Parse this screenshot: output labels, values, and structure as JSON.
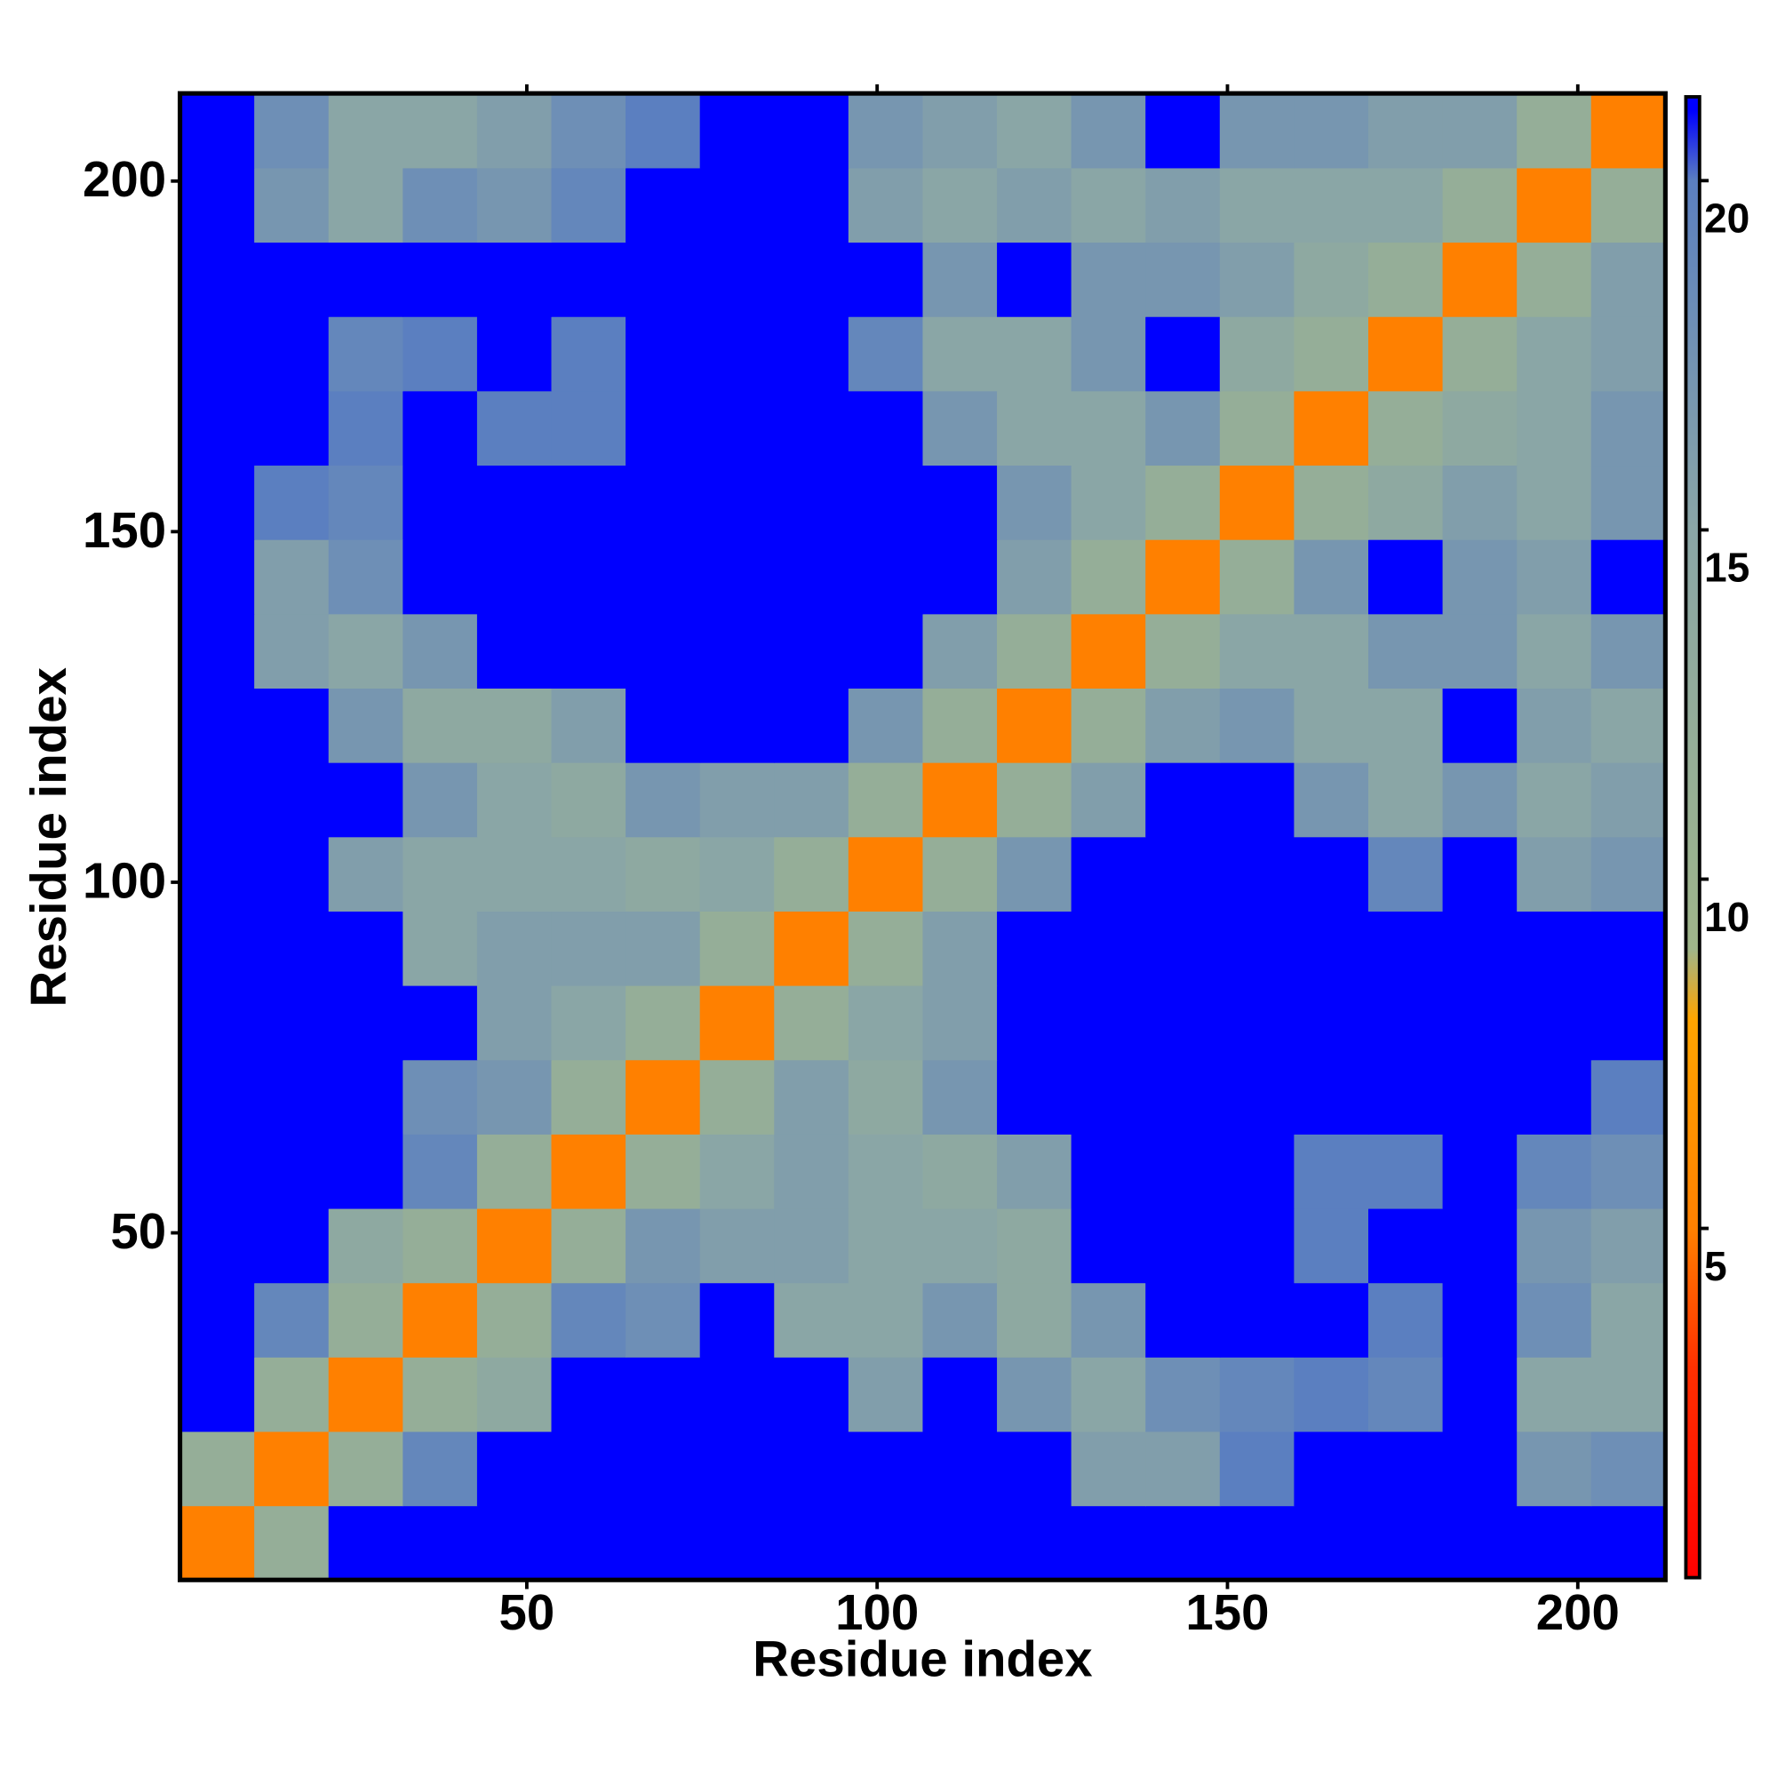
{
  "chart_data": {
    "type": "heatmap",
    "xlabel": "Residue index",
    "ylabel": "Residue index",
    "x": [
      5.8,
      16.4,
      27,
      37.6,
      48.2,
      58.8,
      69.4,
      80,
      90.6,
      101.2,
      111.8,
      122.4,
      133,
      143.6,
      154.2,
      164.8,
      175.4,
      186,
      196.6,
      207.2
    ],
    "y": [
      5.8,
      16.4,
      27,
      37.6,
      48.2,
      58.8,
      69.4,
      80,
      90.6,
      101.2,
      111.8,
      122.4,
      133,
      143.6,
      154.2,
      164.8,
      175.4,
      186,
      196.6,
      207.2
    ],
    "z": [
      [
        5,
        12,
        21,
        21,
        21,
        21,
        21,
        21,
        21,
        21,
        21,
        21,
        21,
        21,
        21,
        21,
        21,
        21,
        21,
        21
      ],
      [
        12,
        5,
        12,
        19,
        21,
        21,
        21,
        21,
        21,
        21,
        21,
        21,
        16,
        16,
        20,
        21,
        21,
        21,
        17,
        18
      ],
      [
        21,
        12,
        5,
        12,
        14,
        21,
        21,
        21,
        21,
        16,
        21,
        17,
        15,
        18,
        19,
        20,
        19,
        21,
        15,
        15
      ],
      [
        21,
        19,
        12,
        5,
        12,
        19,
        18,
        21,
        15,
        15,
        17,
        14,
        17,
        21,
        21,
        21,
        20,
        21,
        18,
        15
      ],
      [
        21,
        21,
        14,
        12,
        5,
        12,
        17,
        16,
        16,
        15,
        15,
        14,
        21,
        21,
        21,
        20,
        21,
        21,
        17,
        16
      ],
      [
        21,
        21,
        21,
        19,
        12,
        5,
        12,
        15,
        16,
        15,
        14,
        16,
        21,
        21,
        21,
        20,
        20,
        21,
        19,
        18
      ],
      [
        21,
        21,
        21,
        18,
        17,
        12,
        5,
        12,
        16,
        14,
        17,
        21,
        21,
        21,
        21,
        21,
        21,
        21,
        21,
        20
      ],
      [
        21,
        21,
        21,
        21,
        16,
        15,
        12,
        5,
        12,
        15,
        16,
        21,
        21,
        21,
        21,
        21,
        21,
        21,
        21,
        21
      ],
      [
        21,
        21,
        21,
        15,
        16,
        16,
        16,
        12,
        5,
        12,
        16,
        21,
        21,
        21,
        21,
        21,
        21,
        21,
        21,
        21
      ],
      [
        21,
        21,
        16,
        15,
        15,
        15,
        14,
        15,
        12,
        5,
        12,
        17,
        21,
        21,
        21,
        21,
        19,
        21,
        16,
        17
      ],
      [
        21,
        21,
        21,
        17,
        15,
        14,
        17,
        16,
        16,
        12,
        5,
        12,
        16,
        21,
        21,
        17,
        15,
        17,
        15,
        16
      ],
      [
        21,
        21,
        17,
        14,
        14,
        16,
        21,
        21,
        21,
        17,
        12,
        5,
        12,
        16,
        17,
        15,
        15,
        21,
        16,
        15
      ],
      [
        21,
        16,
        15,
        17,
        21,
        21,
        21,
        21,
        21,
        21,
        16,
        12,
        5,
        12,
        15,
        15,
        17,
        17,
        15,
        17
      ],
      [
        21,
        16,
        18,
        21,
        21,
        21,
        21,
        21,
        21,
        21,
        21,
        16,
        12,
        5,
        12,
        17,
        21,
        17,
        16,
        21
      ],
      [
        21,
        20,
        19,
        21,
        21,
        21,
        21,
        21,
        21,
        21,
        21,
        17,
        15,
        12,
        5,
        12,
        14,
        16,
        15,
        17
      ],
      [
        21,
        21,
        20,
        21,
        20,
        20,
        21,
        21,
        21,
        21,
        17,
        15,
        15,
        17,
        12,
        5,
        12,
        14,
        15,
        17
      ],
      [
        21,
        21,
        19,
        20,
        21,
        20,
        21,
        21,
        21,
        19,
        15,
        15,
        17,
        21,
        14,
        12,
        5,
        12,
        15,
        16
      ],
      [
        21,
        21,
        21,
        21,
        21,
        21,
        21,
        21,
        21,
        21,
        17,
        21,
        17,
        17,
        16,
        14,
        12,
        5,
        12,
        16
      ],
      [
        21,
        17,
        15,
        18,
        17,
        19,
        21,
        21,
        21,
        16,
        15,
        16,
        15,
        16,
        15,
        15,
        15,
        12,
        5,
        12
      ],
      [
        21,
        18,
        15,
        15,
        16,
        18,
        20,
        21,
        21,
        17,
        16,
        15,
        17,
        21,
        17,
        17,
        16,
        16,
        12,
        5
      ]
    ],
    "xlim": [
      0.5,
      212.5
    ],
    "ylim": [
      0.5,
      212.5
    ],
    "xticks": [
      50,
      100,
      150,
      200
    ],
    "yticks": [
      50,
      100,
      150,
      200
    ],
    "zlim": [
      0,
      21.2
    ],
    "zticks": [
      5,
      10,
      15,
      20
    ],
    "colorscale": [
      [
        0,
        "#ff0000"
      ],
      [
        3,
        "#ff3000"
      ],
      [
        5,
        "#ff8000"
      ],
      [
        8,
        "#ffa500"
      ],
      [
        9,
        "#9fb58a"
      ],
      [
        15,
        "#8aa6a6"
      ],
      [
        20,
        "#5b7fc0"
      ],
      [
        21,
        "#0000ff"
      ]
    ]
  }
}
